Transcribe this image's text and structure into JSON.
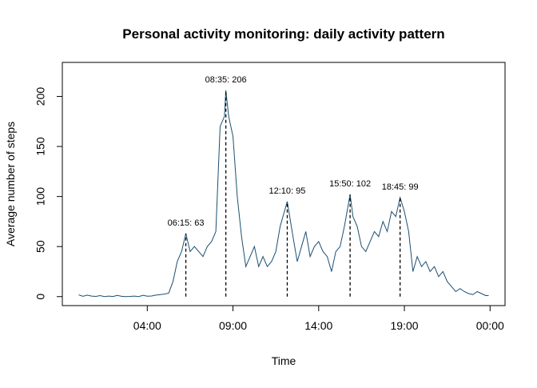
{
  "chart_data": {
    "type": "line",
    "title": "Personal activity monitoring: daily activity pattern",
    "x_label": "Time",
    "y_label": "Average number of steps",
    "x": [
      0,
      15,
      30,
      45,
      60,
      75,
      90,
      105,
      120,
      135,
      150,
      165,
      180,
      195,
      210,
      225,
      240,
      255,
      270,
      285,
      300,
      315,
      330,
      345,
      360,
      375,
      390,
      405,
      420,
      435,
      450,
      465,
      480,
      495,
      510,
      515,
      525,
      540,
      555,
      570,
      585,
      600,
      615,
      630,
      645,
      660,
      675,
      690,
      705,
      720,
      730,
      750,
      765,
      780,
      795,
      810,
      825,
      840,
      855,
      870,
      885,
      900,
      915,
      930,
      950,
      960,
      975,
      990,
      1005,
      1020,
      1035,
      1050,
      1065,
      1080,
      1095,
      1110,
      1125,
      1140,
      1155,
      1170,
      1185,
      1200,
      1215,
      1230,
      1245,
      1260,
      1275,
      1290,
      1305,
      1320,
      1335,
      1350,
      1365,
      1380,
      1395,
      1410,
      1425,
      1435
    ],
    "series": [
      {
        "name": "Average number of steps",
        "color": "#1b4f72",
        "values": [
          1.7,
          0.3,
          1.5,
          0.5,
          0.2,
          1,
          0,
          0.5,
          0.1,
          1.2,
          0.3,
          0,
          0.2,
          0.5,
          0,
          1.3,
          0.4,
          0.6,
          1.5,
          2,
          2.5,
          3.5,
          15,
          35,
          45,
          63,
          45,
          50,
          45,
          40,
          50,
          55,
          65,
          170,
          180,
          206,
          180,
          160,
          100,
          60,
          30,
          40,
          50,
          30,
          40,
          30,
          35,
          45,
          70,
          85,
          95,
          60,
          35,
          50,
          65,
          40,
          50,
          55,
          45,
          40,
          25,
          45,
          50,
          70,
          102,
          80,
          70,
          50,
          45,
          55,
          65,
          60,
          75,
          65,
          85,
          80,
          99,
          85,
          65,
          25,
          40,
          30,
          35,
          25,
          30,
          20,
          25,
          15,
          10,
          5,
          8,
          5,
          3,
          2,
          5,
          3,
          1,
          1
        ]
      }
    ],
    "annotations": [
      {
        "text": "06:15: 63",
        "x": 375,
        "y": 63
      },
      {
        "text": "08:35: 206",
        "x": 515,
        "y": 206
      },
      {
        "text": "12:10: 95",
        "x": 730,
        "y": 95
      },
      {
        "text": "15:50: 102",
        "x": 950,
        "y": 102
      },
      {
        "text": "18:45: 99",
        "x": 1125,
        "y": 99
      }
    ],
    "xlim": [
      -57.4,
      1492.4
    ],
    "xticks": [
      {
        "value": 240,
        "label": "04:00"
      },
      {
        "value": 540,
        "label": "09:00"
      },
      {
        "value": 840,
        "label": "14:00"
      },
      {
        "value": 1140,
        "label": "19:00"
      },
      {
        "value": 1440,
        "label": "00:00"
      }
    ],
    "ylim": [
      -9,
      234
    ],
    "yticks": [
      0,
      50,
      100,
      150,
      200
    ]
  }
}
